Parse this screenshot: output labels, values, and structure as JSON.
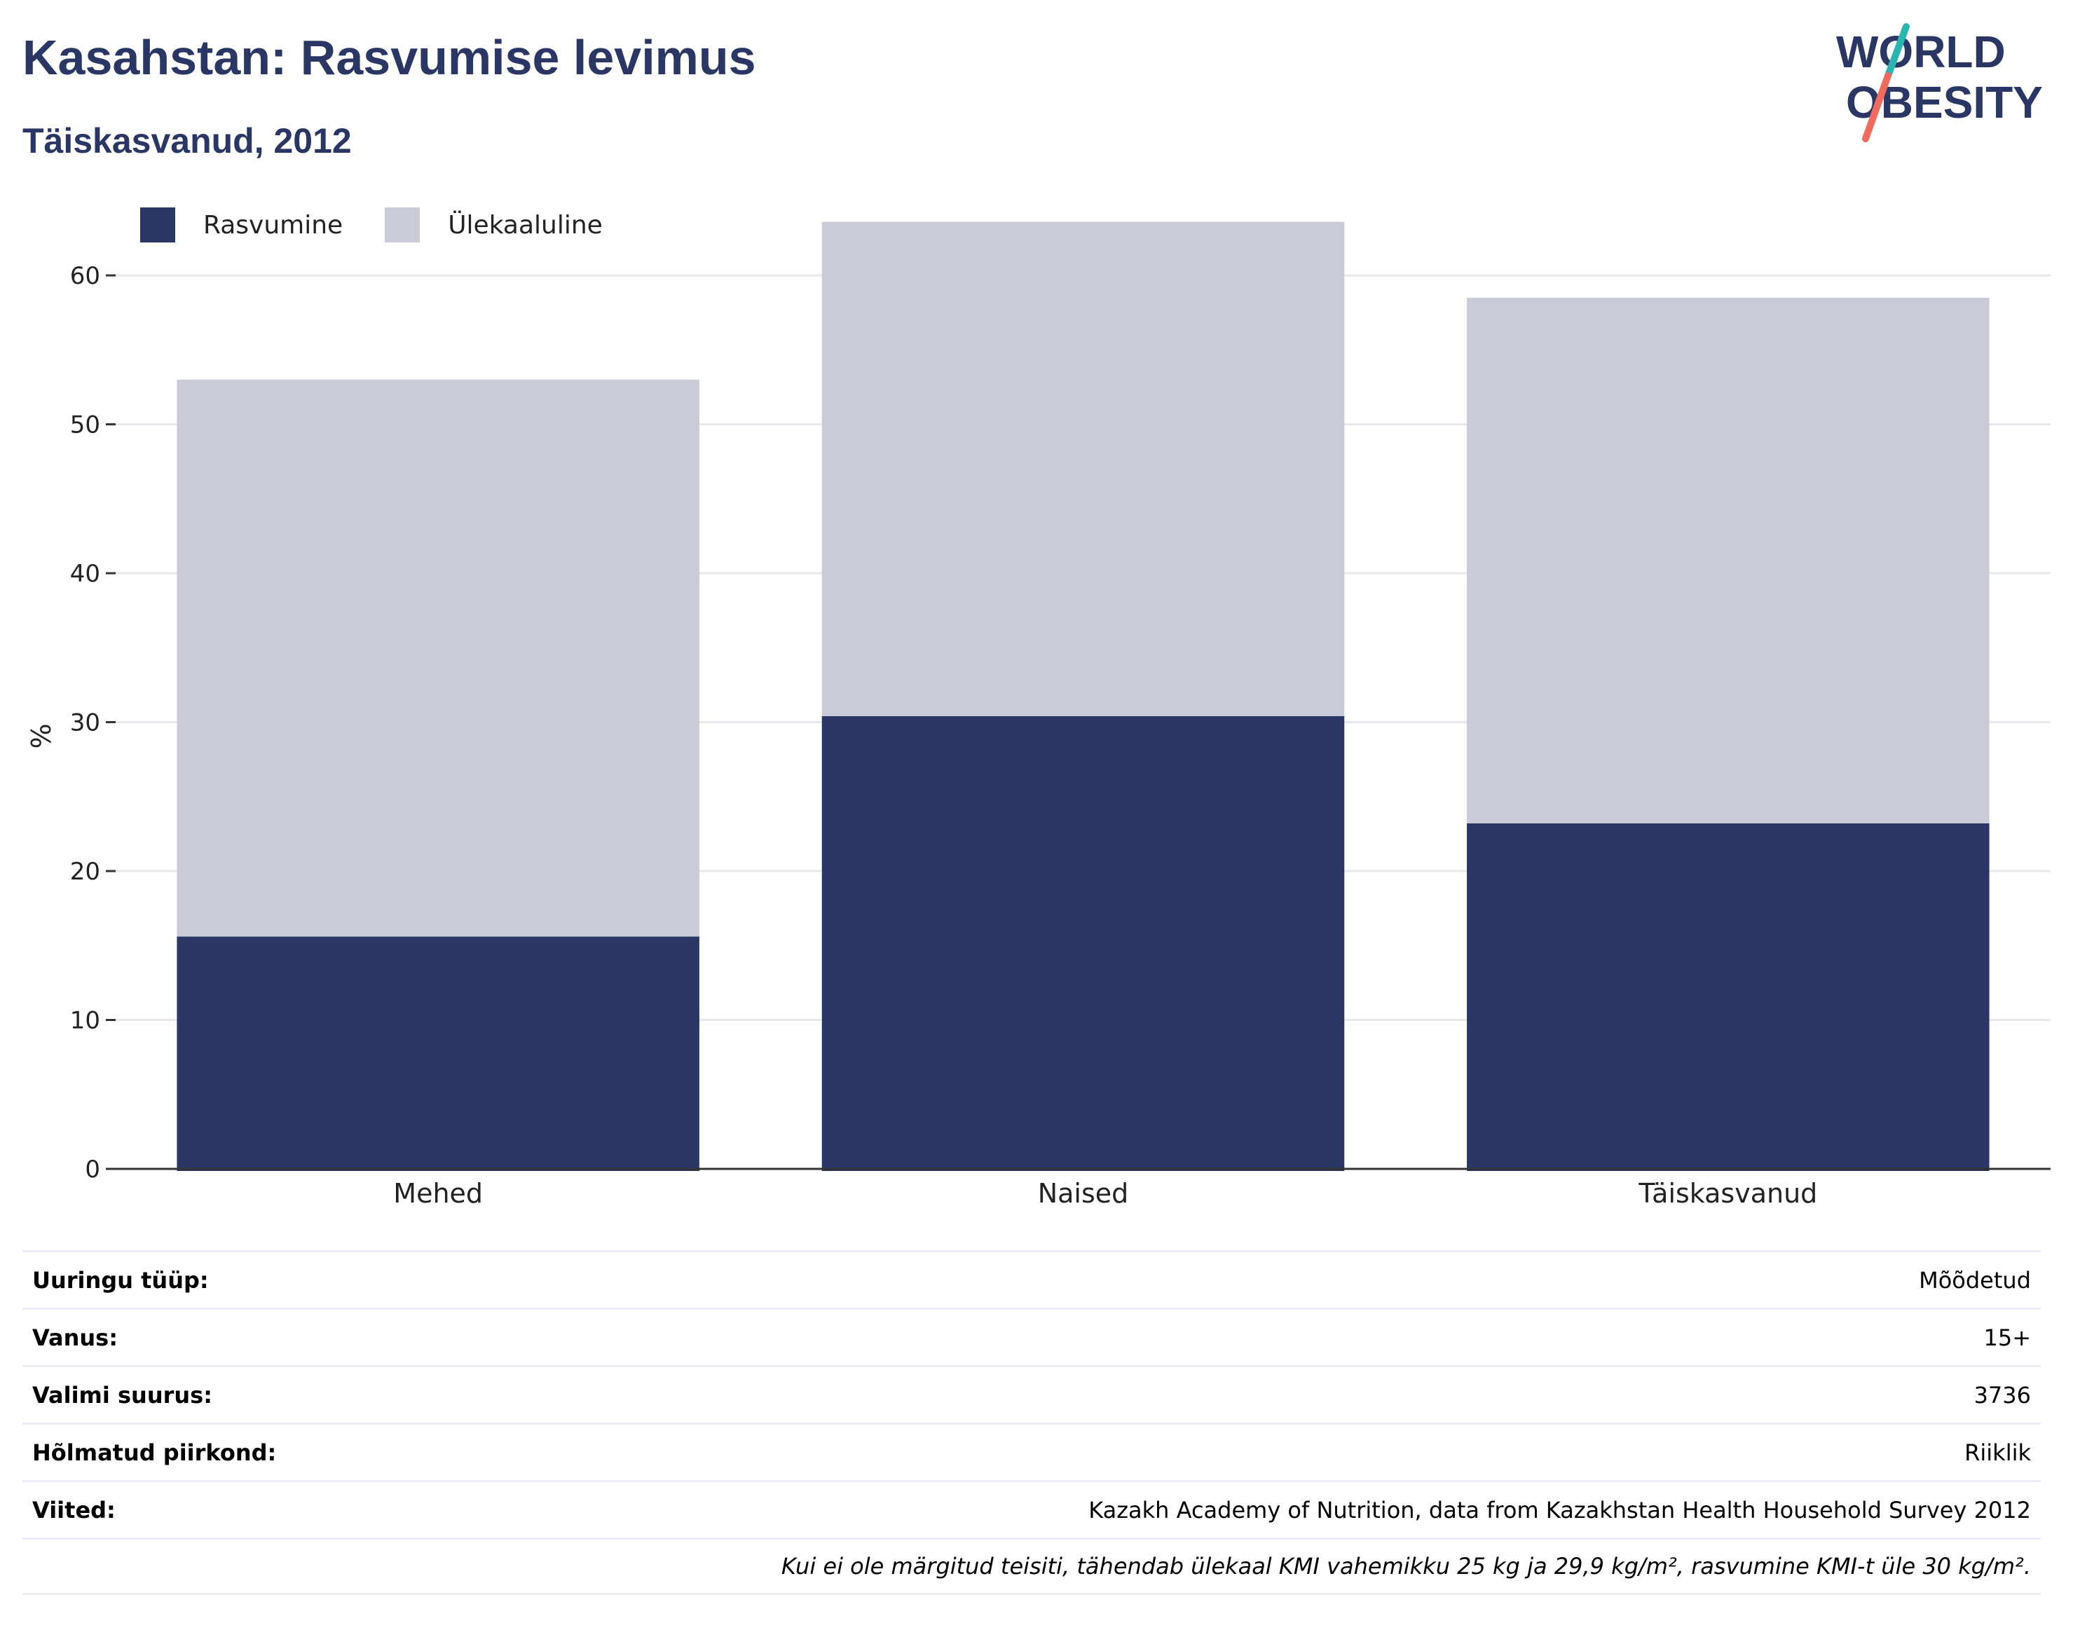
{
  "header": {
    "title": "Kasahstan: Rasvumise levimus",
    "subtitle": "Täiskasvanud, 2012"
  },
  "logo": {
    "line1": "WORLD",
    "line2": "OBESITY"
  },
  "colors": {
    "obesity": "#2a3765",
    "overweight": "#c9ccd8",
    "title": "#2a3765"
  },
  "chart_data": {
    "type": "bar",
    "stacked": true,
    "categories": [
      "Mehed",
      "Naised",
      "Täiskasvanud"
    ],
    "series": [
      {
        "name": "Rasvumine",
        "values": [
          15.6,
          30.4,
          23.2
        ],
        "color": "#2a3765"
      },
      {
        "name": "Ülekaaluline",
        "values": [
          37.4,
          33.2,
          35.3
        ],
        "color": "#c9ccd8"
      }
    ],
    "ylabel": "%",
    "ylim": [
      0,
      70
    ],
    "yticks": [
      0,
      10,
      20,
      30,
      40,
      50,
      60
    ],
    "grid": true,
    "legend": "top-left"
  },
  "info": {
    "rows": [
      {
        "label": "Uuringu tüüp:",
        "value": "Mõõdetud"
      },
      {
        "label": "Vanus:",
        "value": "15+"
      },
      {
        "label": "Valimi suurus:",
        "value": "3736"
      },
      {
        "label": "Hõlmatud piirkond:",
        "value": "Riiklik"
      },
      {
        "label": "Viited:",
        "value": "Kazakh Academy of Nutrition, data from Kazakhstan Health Household Survey 2012"
      }
    ],
    "note": "Kui ei ole märgitud teisiti, tähendab ülekaal KMI vahemikku 25 kg ja 29,9 kg/m², rasvumine KMI-t üle 30 kg/m²."
  }
}
